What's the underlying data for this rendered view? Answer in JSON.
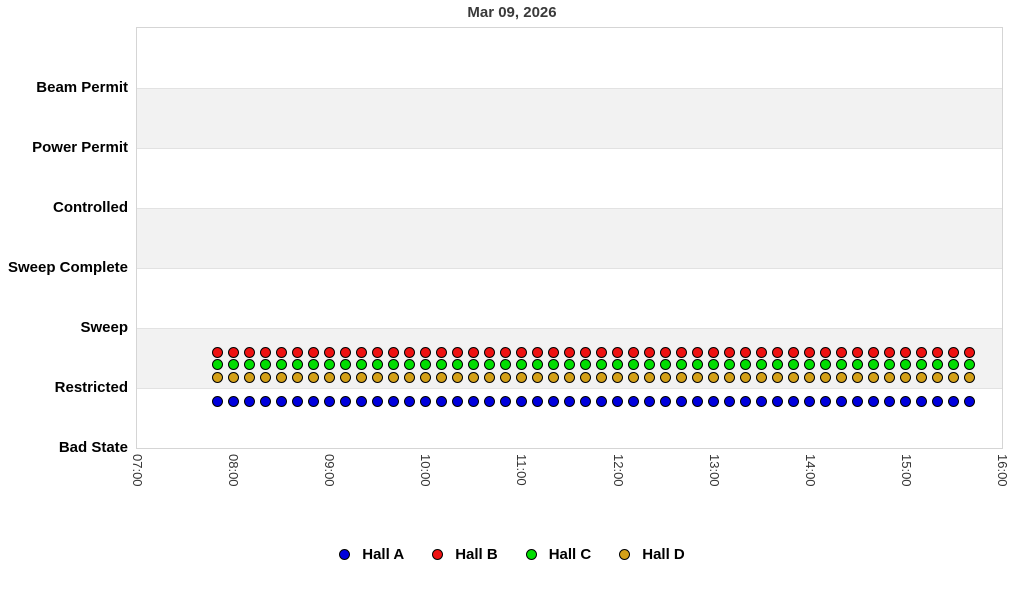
{
  "chart_data": {
    "type": "scatter",
    "title": "Mar 09, 2026",
    "x_axis": {
      "ticks": [
        "07:00",
        "08:00",
        "09:00",
        "10:00",
        "11:00",
        "12:00",
        "13:00",
        "14:00",
        "15:00",
        "16:00"
      ],
      "start_hour": 7,
      "end_hour": 16,
      "tick_rotation_deg": 90
    },
    "y_axis": {
      "categories_bottom_to_top": [
        "Bad State",
        "Restricted",
        "Sweep",
        "Sweep Complete",
        "Controlled",
        "Power Permit",
        "Beam Permit"
      ],
      "levels_total": 7,
      "top_padding_levels": 1
    },
    "bands": {
      "fill": "#f2f2f2",
      "edge": "#e2e2e2",
      "gray_bands_between_levels": [
        [
          1,
          2
        ],
        [
          3,
          4
        ],
        [
          5,
          6
        ]
      ]
    },
    "samples": {
      "first_time": "07:50",
      "last_time": "15:40",
      "interval_minutes": 10,
      "count": 48
    },
    "series": [
      {
        "name": "Hall A",
        "color": "#0000dd",
        "state": "Restricted",
        "base_level": 1,
        "y_offset_levels": -0.225
      },
      {
        "name": "Hall B",
        "color": "#ee1111",
        "state": "Restricted",
        "base_level": 1,
        "y_offset_levels": 0.59
      },
      {
        "name": "Hall C",
        "color": "#00dd00",
        "state": "Restricted",
        "base_level": 1,
        "y_offset_levels": 0.4
      },
      {
        "name": "Hall D",
        "color": "#d4a017",
        "state": "Restricted",
        "base_level": 1,
        "y_offset_levels": 0.17
      }
    ],
    "legend": {
      "position": "bottom-center",
      "items": [
        {
          "label": "Hall A",
          "color": "#0000dd"
        },
        {
          "label": "Hall B",
          "color": "#ee1111"
        },
        {
          "label": "Hall C",
          "color": "#00dd00"
        },
        {
          "label": "Hall D",
          "color": "#d4a017"
        }
      ]
    }
  }
}
